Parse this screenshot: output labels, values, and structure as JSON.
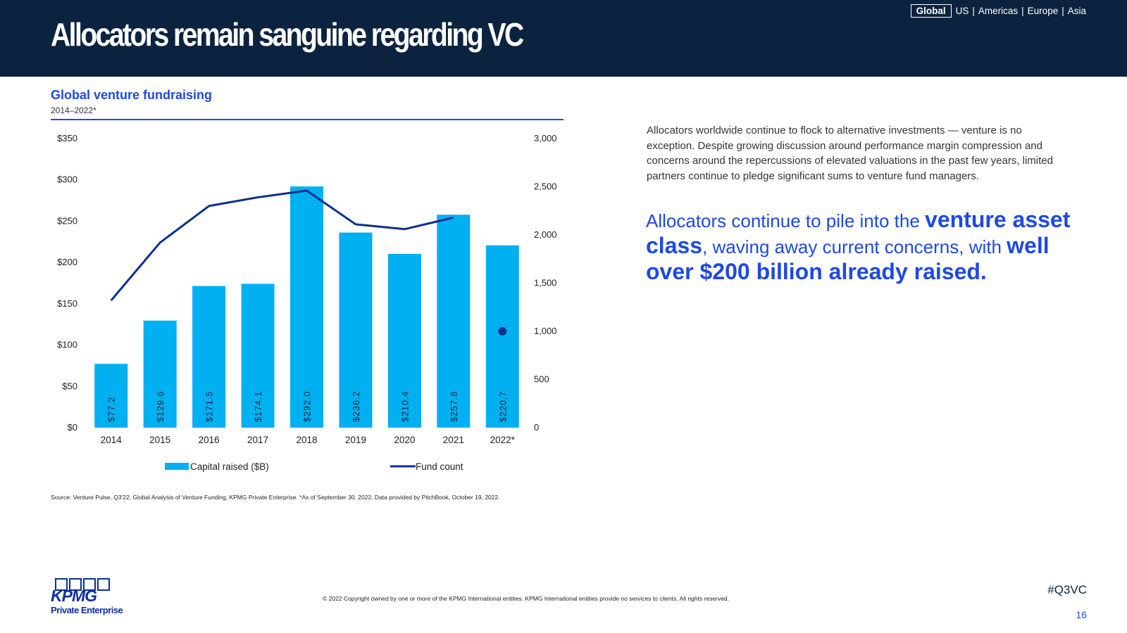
{
  "header": {
    "title": "Allocators remain sanguine regarding VC",
    "region_nav": {
      "selected": "Global",
      "others": [
        "US",
        "Americas",
        "Europe",
        "Asia"
      ],
      "separator": "|"
    }
  },
  "chart_header": {
    "title": "Global venture fundraising",
    "subtitle": "2014–2022*"
  },
  "chart_data": {
    "type": "bar",
    "categories": [
      "2014",
      "2015",
      "2016",
      "2017",
      "2018",
      "2019",
      "2020",
      "2021",
      "2022*"
    ],
    "series": [
      {
        "name": "Capital raised ($B)",
        "type": "bar",
        "axis": "left",
        "values": [
          77.2,
          129.6,
          171.5,
          174.1,
          292.0,
          236.2,
          210.4,
          257.8,
          220.7
        ],
        "labels": [
          "$77.2",
          "$129.6",
          "$171.5",
          "$174.1",
          "$292.0",
          "$236.2",
          "$210.4",
          "$257.8",
          "$220.7"
        ],
        "color": "#00b0f0"
      },
      {
        "name": "Fund count",
        "type": "line",
        "axis": "right",
        "values": [
          1320,
          1920,
          2300,
          2390,
          2460,
          2110,
          2060,
          2180,
          1000
        ],
        "line_through_index": 7,
        "standalone_marker_index": 8,
        "color": "#0c2f8f"
      }
    ],
    "left_axis": {
      "min": 0,
      "max": 350,
      "ticks": [
        "$0",
        "$50",
        "$100",
        "$150",
        "$200",
        "$250",
        "$300",
        "$350"
      ]
    },
    "right_axis": {
      "min": 0,
      "max": 3000,
      "ticks": [
        "0",
        "500",
        "1,000",
        "1,500",
        "2,000",
        "2,500",
        "3,000"
      ]
    },
    "grid": false,
    "legend_position": "bottom"
  },
  "source_note": "Source: Venture Pulse, Q3'22, Global Analysis of Venture Funding, KPMG Private Enterprise. *As of September 30, 2022. Data provided by PitchBook, October 19, 2022.",
  "commentary": {
    "body": "Allocators worldwide continue to flock to alternative investments — venture is no exception. Despite growing discussion around performance margin compression and concerns around the repercussions of elevated valuations in the past few years, limited partners continue to pledge significant sums to venture fund managers.",
    "callout_parts": [
      {
        "text": "Allocators continue to pile into the ",
        "bold": false
      },
      {
        "text": "venture asset class",
        "bold": true
      },
      {
        "text": ", waving away current concerns, with ",
        "bold": false
      },
      {
        "text": "well over $200 billion already raised.",
        "bold": true
      }
    ]
  },
  "footer": {
    "logo_word": "KPMG",
    "logo_subtitle": "Private Enterprise",
    "copyright": "© 2022 Copyright owned by one or more of the KPMG International entities. KPMG International entities provide no services to clients. All rights reserved.",
    "hashtag": "#Q3VC",
    "page_number": "16"
  }
}
